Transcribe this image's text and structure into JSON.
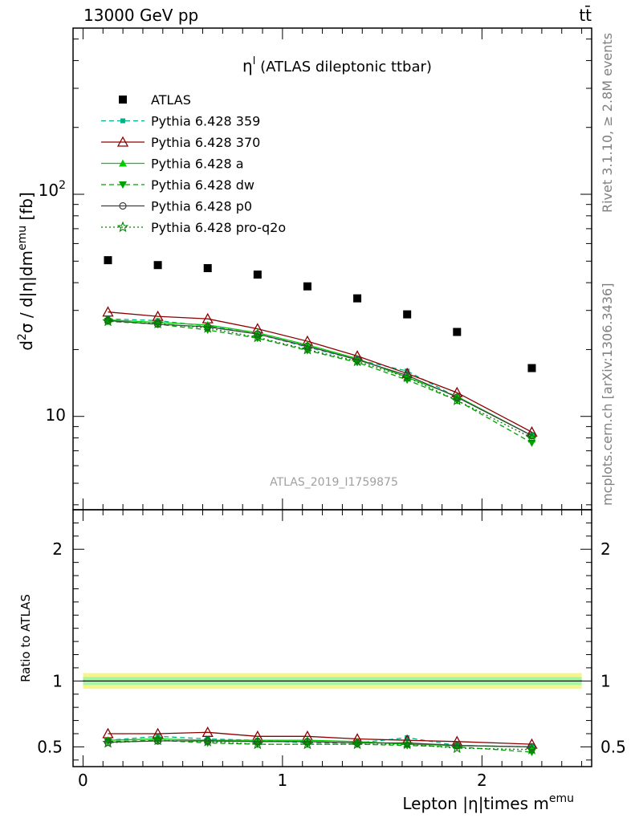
{
  "header": {
    "left": "13000 GeV pp",
    "right": "tt̄"
  },
  "side_texts": {
    "rivet": "Rivet 3.1.10, ≥ 2.8M events",
    "mcplots": "mcplots.cern.ch [arXiv:1306.3436]"
  },
  "chart_data": [
    {
      "type": "scatter",
      "panel": "main",
      "title_main": "η",
      "title_sup": "l",
      "title_rest": " (ATLAS dileptonic ttbar)",
      "watermark": "ATLAS_2019_I1759875",
      "ylabel": "d²σ / d|η|dm^emu [fb]",
      "ylabel_parts": {
        "a": "d",
        "b": "2",
        "c": "σ / d|η|dm",
        "d": "emu",
        "e": " [fb]"
      },
      "yscale": "log",
      "ylim": [
        3.8,
        560
      ],
      "xlim": [
        -0.05,
        2.55
      ],
      "y_tick_labels": [
        {
          "value": 100,
          "base": "10",
          "exp": "2"
        },
        {
          "value": 10,
          "base": "10",
          "exp": ""
        }
      ],
      "x": [
        0.125,
        0.375,
        0.625,
        0.875,
        1.125,
        1.375,
        1.625,
        1.875,
        2.25
      ],
      "series": [
        {
          "name": "ATLAS",
          "color": "#000000",
          "marker": "square",
          "dash": "none",
          "values": [
            50.5,
            48.0,
            46.5,
            43.5,
            38.5,
            34.0,
            28.8,
            24.0,
            16.5
          ]
        },
        {
          "name": "Pythia 6.428 359",
          "color": "#00b386",
          "marker": "smallsquare",
          "dash": "dashed",
          "values": [
            27.5,
            27.0,
            25.5,
            23.5,
            20.5,
            18.0,
            16.0,
            12.2,
            8.2
          ]
        },
        {
          "name": "Pythia 6.428 370",
          "color": "#8b0000",
          "marker": "triangle-open",
          "dash": "solid",
          "values": [
            29.5,
            28.2,
            27.5,
            24.8,
            21.8,
            18.7,
            15.6,
            12.8,
            8.5
          ]
        },
        {
          "name": "Pythia 6.428 a",
          "color": "#00cc00",
          "marker": "triangle",
          "dash": "solid",
          "values": [
            27.2,
            26.5,
            25.8,
            23.8,
            21.0,
            18.2,
            15.0,
            12.3,
            8.2
          ]
        },
        {
          "name": "Pythia 6.428 dw",
          "color": "#00a000",
          "marker": "triangle-down",
          "dash": "dashed",
          "values": [
            26.8,
            26.0,
            24.5,
            22.5,
            19.8,
            17.5,
            14.6,
            11.8,
            7.6
          ]
        },
        {
          "name": "Pythia 6.428 p0",
          "color": "#404040",
          "marker": "circle-open",
          "dash": "solid",
          "values": [
            27.0,
            26.0,
            25.3,
            23.5,
            20.7,
            18.0,
            15.3,
            12.2,
            8.2
          ]
        },
        {
          "name": "Pythia 6.428 pro-q2o",
          "color": "#008000",
          "marker": "star",
          "dash": "dotted",
          "values": [
            26.8,
            26.2,
            25.0,
            22.7,
            20.0,
            17.7,
            15.0,
            11.8,
            8.0
          ]
        }
      ]
    },
    {
      "type": "line",
      "panel": "ratio",
      "ylabel": "Ratio to ATLAS",
      "xlabel": "Lepton |η|times m",
      "xlabel_sup": "emu",
      "ylim": [
        0.35,
        2.3
      ],
      "xlim": [
        -0.05,
        2.55
      ],
      "y_tick_labels": [
        "0.5",
        "1",
        "2"
      ],
      "y_ticks": [
        0.5,
        1,
        2
      ],
      "x_tick_labels": [
        "0",
        "1",
        "2"
      ],
      "x_ticks": [
        0,
        1,
        2
      ],
      "band_outer": [
        0.94,
        1.06
      ],
      "band_inner": [
        0.97,
        1.03
      ],
      "band_colors": {
        "outer": "#f5f58c",
        "inner": "#a5f5a5"
      },
      "x": [
        0.125,
        0.375,
        0.625,
        0.875,
        1.125,
        1.375,
        1.625,
        1.875,
        2.25
      ],
      "series": [
        {
          "name": "Pythia 6.428 359",
          "color": "#00b386",
          "marker": "smallsquare",
          "dash": "dashed",
          "values": [
            0.55,
            0.58,
            0.56,
            0.55,
            0.53,
            0.53,
            0.57,
            0.51,
            0.5
          ]
        },
        {
          "name": "Pythia 6.428 370",
          "color": "#8b0000",
          "marker": "triangle-open",
          "dash": "solid",
          "values": [
            0.6,
            0.6,
            0.61,
            0.58,
            0.58,
            0.56,
            0.55,
            0.54,
            0.52
          ]
        },
        {
          "name": "Pythia 6.428 a",
          "color": "#00cc00",
          "marker": "triangle",
          "dash": "solid",
          "values": [
            0.55,
            0.56,
            0.55,
            0.55,
            0.55,
            0.54,
            0.52,
            0.51,
            0.5
          ]
        },
        {
          "name": "Pythia 6.428 dw",
          "color": "#00a000",
          "marker": "triangle-down",
          "dash": "dashed",
          "values": [
            0.54,
            0.55,
            0.53,
            0.52,
            0.52,
            0.52,
            0.51,
            0.5,
            0.46
          ]
        },
        {
          "name": "Pythia 6.428 p0",
          "color": "#404040",
          "marker": "circle-open",
          "dash": "solid",
          "values": [
            0.535,
            0.545,
            0.545,
            0.54,
            0.54,
            0.53,
            0.53,
            0.51,
            0.5
          ]
        },
        {
          "name": "Pythia 6.428 pro-q2o",
          "color": "#008000",
          "marker": "star",
          "dash": "dotted",
          "values": [
            0.53,
            0.55,
            0.54,
            0.52,
            0.52,
            0.52,
            0.52,
            0.49,
            0.48
          ]
        }
      ]
    }
  ]
}
